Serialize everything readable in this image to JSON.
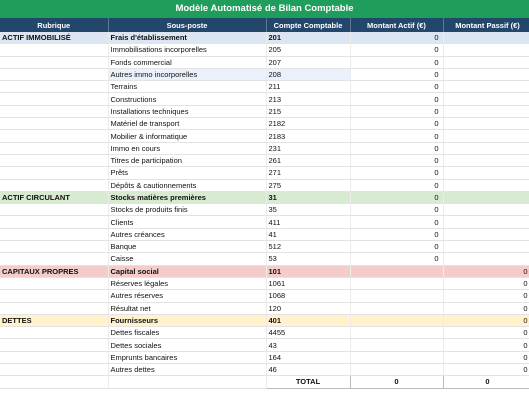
{
  "title": "Modèle Automatisé de Bilan Comptable",
  "headers": [
    "Rubrique",
    "Sous-poste",
    "Compte Comptable",
    "Montant Actif (€)",
    "Montant Passif (€)"
  ],
  "rows": [
    {
      "rubrique": "ACTIF IMMOBILISÉ",
      "sous_poste": "Frais d'établissement",
      "compte": "201",
      "actif": "0",
      "passif": "",
      "section": "blue",
      "head": true
    },
    {
      "rubrique": "",
      "sous_poste": "Immobilisations incorporelles",
      "compte": "205",
      "actif": "0",
      "passif": ""
    },
    {
      "rubrique": "",
      "sous_poste": "Fonds commercial",
      "compte": "207",
      "actif": "0",
      "passif": ""
    },
    {
      "rubrique": "",
      "sous_poste": "Autres immo incorporelles",
      "compte": "208",
      "actif": "0",
      "passif": "",
      "light": true
    },
    {
      "rubrique": "",
      "sous_poste": "Terrains",
      "compte": "211",
      "actif": "0",
      "passif": ""
    },
    {
      "rubrique": "",
      "sous_poste": "Constructions",
      "compte": "213",
      "actif": "0",
      "passif": ""
    },
    {
      "rubrique": "",
      "sous_poste": "Installations techniques",
      "compte": "215",
      "actif": "0",
      "passif": ""
    },
    {
      "rubrique": "",
      "sous_poste": "Matériel de transport",
      "compte": "2182",
      "actif": "0",
      "passif": ""
    },
    {
      "rubrique": "",
      "sous_poste": "Mobilier & informatique",
      "compte": "2183",
      "actif": "0",
      "passif": ""
    },
    {
      "rubrique": "",
      "sous_poste": "Immo en cours",
      "compte": "231",
      "actif": "0",
      "passif": ""
    },
    {
      "rubrique": "",
      "sous_poste": "Titres de participation",
      "compte": "261",
      "actif": "0",
      "passif": ""
    },
    {
      "rubrique": "",
      "sous_poste": "Prêts",
      "compte": "271",
      "actif": "0",
      "passif": ""
    },
    {
      "rubrique": "",
      "sous_poste": "Dépôts & cautionnements",
      "compte": "275",
      "actif": "0",
      "passif": ""
    },
    {
      "rubrique": "ACTIF CIRCULANT",
      "sous_poste": "Stocks matières premières",
      "compte": "31",
      "actif": "0",
      "passif": "",
      "section": "green",
      "head": true
    },
    {
      "rubrique": "",
      "sous_poste": "Stocks de produits finis",
      "compte": "35",
      "actif": "0",
      "passif": ""
    },
    {
      "rubrique": "",
      "sous_poste": "Clients",
      "compte": "411",
      "actif": "0",
      "passif": ""
    },
    {
      "rubrique": "",
      "sous_poste": "Autres créances",
      "compte": "41",
      "actif": "0",
      "passif": ""
    },
    {
      "rubrique": "",
      "sous_poste": "Banque",
      "compte": "512",
      "actif": "0",
      "passif": ""
    },
    {
      "rubrique": "",
      "sous_poste": "Caisse",
      "compte": "53",
      "actif": "0",
      "passif": ""
    },
    {
      "rubrique": "CAPITAUX PROPRES",
      "sous_poste": "Capital social",
      "compte": "101",
      "actif": "",
      "passif": "0",
      "section": "red",
      "head": true
    },
    {
      "rubrique": "",
      "sous_poste": "Réserves légales",
      "compte": "1061",
      "actif": "",
      "passif": "0"
    },
    {
      "rubrique": "",
      "sous_poste": "Autres réserves",
      "compte": "1068",
      "actif": "",
      "passif": "0"
    },
    {
      "rubrique": "",
      "sous_poste": "Résultat net",
      "compte": "120",
      "actif": "",
      "passif": "0"
    },
    {
      "rubrique": "DETTES",
      "sous_poste": "Fournisseurs",
      "compte": "401",
      "actif": "",
      "passif": "0",
      "section": "yellow",
      "head": true
    },
    {
      "rubrique": "",
      "sous_poste": "Dettes fiscales",
      "compte": "4455",
      "actif": "",
      "passif": "0"
    },
    {
      "rubrique": "",
      "sous_poste": "Dettes sociales",
      "compte": "43",
      "actif": "",
      "passif": "0"
    },
    {
      "rubrique": "",
      "sous_poste": "Emprunts bancaires",
      "compte": "164",
      "actif": "",
      "passif": "0"
    },
    {
      "rubrique": "",
      "sous_poste": "Autres dettes",
      "compte": "46",
      "actif": "",
      "passif": "0"
    }
  ],
  "total": {
    "label": "TOTAL",
    "actif": "0",
    "passif": "0"
  }
}
